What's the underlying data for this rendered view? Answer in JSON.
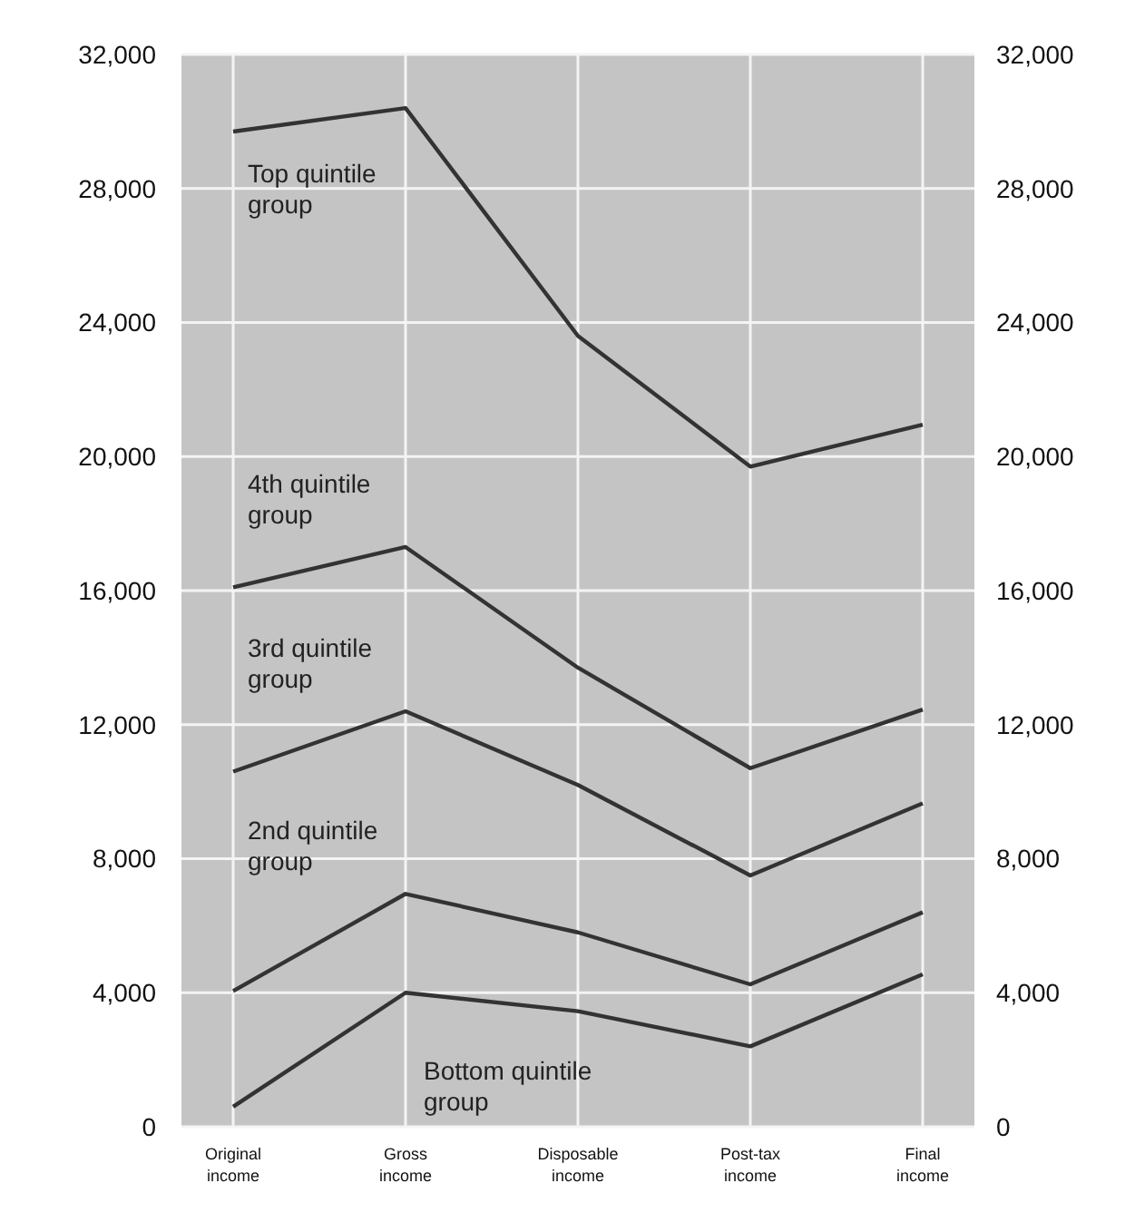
{
  "chart_data": {
    "type": "line",
    "categories": [
      "Original\nincome",
      "Gross\nincome",
      "Disposable\nincome",
      "Post-tax\nincome",
      "Final\nincome"
    ],
    "series": [
      {
        "name": "Top quintile group",
        "color": "#333333",
        "values": [
          29700,
          30400,
          23600,
          19700,
          20950
        ]
      },
      {
        "name": "4th quintile group",
        "color": "#333333",
        "values": [
          16100,
          17300,
          13700,
          10700,
          12450
        ]
      },
      {
        "name": "3rd quintile group",
        "color": "#333333",
        "values": [
          10600,
          12400,
          10200,
          7500,
          9650
        ]
      },
      {
        "name": "2nd quintile group",
        "color": "#333333",
        "values": [
          4050,
          6950,
          5800,
          4250,
          6400
        ]
      },
      {
        "name": "Bottom quintile group",
        "color": "#333333",
        "values": [
          600,
          4000,
          3450,
          2400,
          4550
        ]
      }
    ],
    "ylim": [
      0,
      32000
    ],
    "yticks": [
      {
        "value": 0,
        "label": "0"
      },
      {
        "value": 4000,
        "label": "4,000"
      },
      {
        "value": 8000,
        "label": "8,000"
      },
      {
        "value": 12000,
        "label": "12,000"
      },
      {
        "value": 16000,
        "label": "16,000"
      },
      {
        "value": 20000,
        "label": "20,000"
      },
      {
        "value": 24000,
        "label": "24,000"
      },
      {
        "value": 28000,
        "label": "28,000"
      },
      {
        "value": 32000,
        "label": "32,000"
      }
    ],
    "y2lim": [
      0,
      32000
    ],
    "y2ticks": [
      {
        "value": 0,
        "label": "0"
      },
      {
        "value": 4000,
        "label": "4,000"
      },
      {
        "value": 8000,
        "label": "8,000"
      },
      {
        "value": 12000,
        "label": "12,000"
      },
      {
        "value": 16000,
        "label": "16,000"
      },
      {
        "value": 20000,
        "label": "20,000"
      },
      {
        "value": 24000,
        "label": "24,000"
      },
      {
        "value": 28000,
        "label": "28,000"
      },
      {
        "value": 32000,
        "label": "32,000"
      }
    ],
    "grid": true,
    "marker": "none",
    "line_style": "solid"
  }
}
